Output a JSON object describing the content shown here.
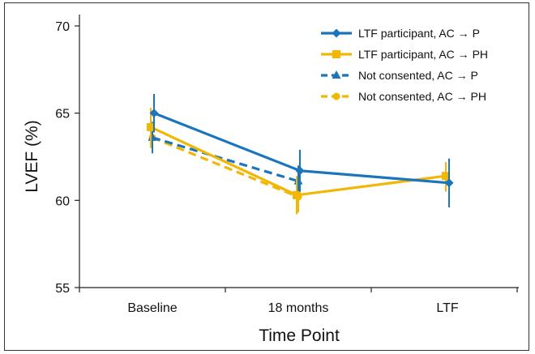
{
  "chart_data": {
    "type": "line",
    "title": "",
    "xlabel": "Time Point",
    "ylabel": "LVEF (%)",
    "ylim": [
      55,
      70
    ],
    "yticks": [
      55,
      60,
      65,
      70
    ],
    "categories": [
      "Baseline",
      "18 months",
      "LTF"
    ],
    "grid": false,
    "legend_position": "top-right",
    "series": [
      {
        "name": "LTF participant, AC → P",
        "color": "#1a75bc",
        "marker": "diamond",
        "dash": "solid",
        "values": [
          65.0,
          61.7,
          61.0
        ],
        "err_low": [
          63.9,
          60.5,
          59.6
        ],
        "err_high": [
          66.1,
          62.9,
          62.4
        ]
      },
      {
        "name": "LTF participant, AC → PH",
        "color": "#f2b705",
        "marker": "square",
        "dash": "solid",
        "values": [
          64.2,
          60.3,
          61.4
        ],
        "err_low": [
          63.0,
          59.2,
          60.5
        ],
        "err_high": [
          65.3,
          61.4,
          62.2
        ]
      },
      {
        "name": "Not consented, AC → P",
        "color": "#1a75bc",
        "marker": "triangle",
        "dash": "dashed",
        "values": [
          63.6,
          61.1,
          null
        ],
        "err_low": [
          62.7,
          60.2,
          null
        ],
        "err_high": [
          64.5,
          62.0,
          null
        ]
      },
      {
        "name": "Not consented, AC → PH",
        "color": "#f2b705",
        "marker": "circle",
        "dash": "dashed",
        "values": [
          63.6,
          60.2,
          null
        ],
        "err_low": [
          62.9,
          59.3,
          null
        ],
        "err_high": [
          64.4,
          61.1,
          null
        ]
      }
    ]
  }
}
